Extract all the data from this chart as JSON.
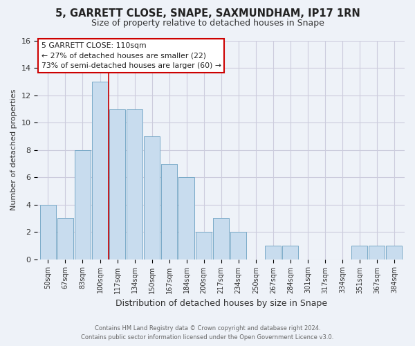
{
  "title": "5, GARRETT CLOSE, SNAPE, SAXMUNDHAM, IP17 1RN",
  "subtitle": "Size of property relative to detached houses in Snape",
  "xlabel": "Distribution of detached houses by size in Snape",
  "ylabel": "Number of detached properties",
  "bar_color": "#c8dcee",
  "bar_edge_color": "#7aaac8",
  "categories": [
    "50sqm",
    "67sqm",
    "83sqm",
    "100sqm",
    "117sqm",
    "134sqm",
    "150sqm",
    "167sqm",
    "184sqm",
    "200sqm",
    "217sqm",
    "234sqm",
    "250sqm",
    "267sqm",
    "284sqm",
    "301sqm",
    "317sqm",
    "334sqm",
    "351sqm",
    "367sqm",
    "384sqm"
  ],
  "values": [
    4,
    3,
    8,
    13,
    11,
    11,
    9,
    7,
    6,
    2,
    3,
    2,
    0,
    1,
    1,
    0,
    0,
    0,
    1,
    1,
    1
  ],
  "ylim": [
    0,
    16
  ],
  "yticks": [
    0,
    2,
    4,
    6,
    8,
    10,
    12,
    14,
    16
  ],
  "annotation_title": "5 GARRETT CLOSE: 110sqm",
  "annotation_line1": "← 27% of detached houses are smaller (22)",
  "annotation_line2": "73% of semi-detached houses are larger (60) →",
  "annotation_box_color": "#ffffff",
  "annotation_box_edge_color": "#cc0000",
  "vline_color": "#cc0000",
  "vline_x": 3.5,
  "footer_line1": "Contains HM Land Registry data © Crown copyright and database right 2024.",
  "footer_line2": "Contains public sector information licensed under the Open Government Licence v3.0.",
  "grid_color": "#ccccdd",
  "background_color": "#eef2f8"
}
